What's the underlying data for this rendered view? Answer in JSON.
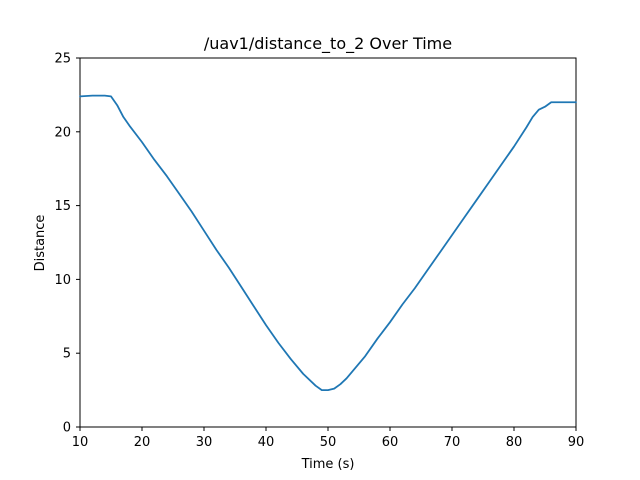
{
  "chart_data": {
    "type": "line",
    "title": "/uav1/distance_to_2 Over Time",
    "xlabel": "Time (s)",
    "ylabel": "Distance",
    "xlim": [
      10,
      90
    ],
    "ylim": [
      0,
      25
    ],
    "xticks": [
      "10",
      "20",
      "30",
      "40",
      "50",
      "60",
      "70",
      "80",
      "90"
    ],
    "yticks": [
      "0",
      "5",
      "10",
      "15",
      "20",
      "25"
    ],
    "grid": false,
    "legend": "none",
    "series": [
      {
        "color": "#1f77b4",
        "x": [
          10,
          12,
          14,
          15,
          16,
          17,
          18,
          20,
          22,
          24,
          26,
          28,
          30,
          32,
          34,
          36,
          38,
          40,
          42,
          44,
          46,
          48,
          49,
          50,
          51,
          52,
          53,
          54,
          56,
          58,
          60,
          62,
          64,
          66,
          68,
          70,
          72,
          74,
          76,
          78,
          80,
          82,
          83,
          84,
          85,
          86,
          87,
          88,
          90
        ],
        "y": [
          22.4,
          22.45,
          22.45,
          22.4,
          21.8,
          21.0,
          20.4,
          19.3,
          18.1,
          17.0,
          15.8,
          14.6,
          13.3,
          12.0,
          10.8,
          9.5,
          8.2,
          6.9,
          5.7,
          4.6,
          3.6,
          2.8,
          2.5,
          2.5,
          2.6,
          2.9,
          3.3,
          3.8,
          4.8,
          6.0,
          7.1,
          8.3,
          9.4,
          10.6,
          11.8,
          13.0,
          14.2,
          15.4,
          16.6,
          17.8,
          19.0,
          20.3,
          21.0,
          21.5,
          21.7,
          22.0,
          22.0,
          22.0,
          22.0
        ]
      }
    ]
  }
}
